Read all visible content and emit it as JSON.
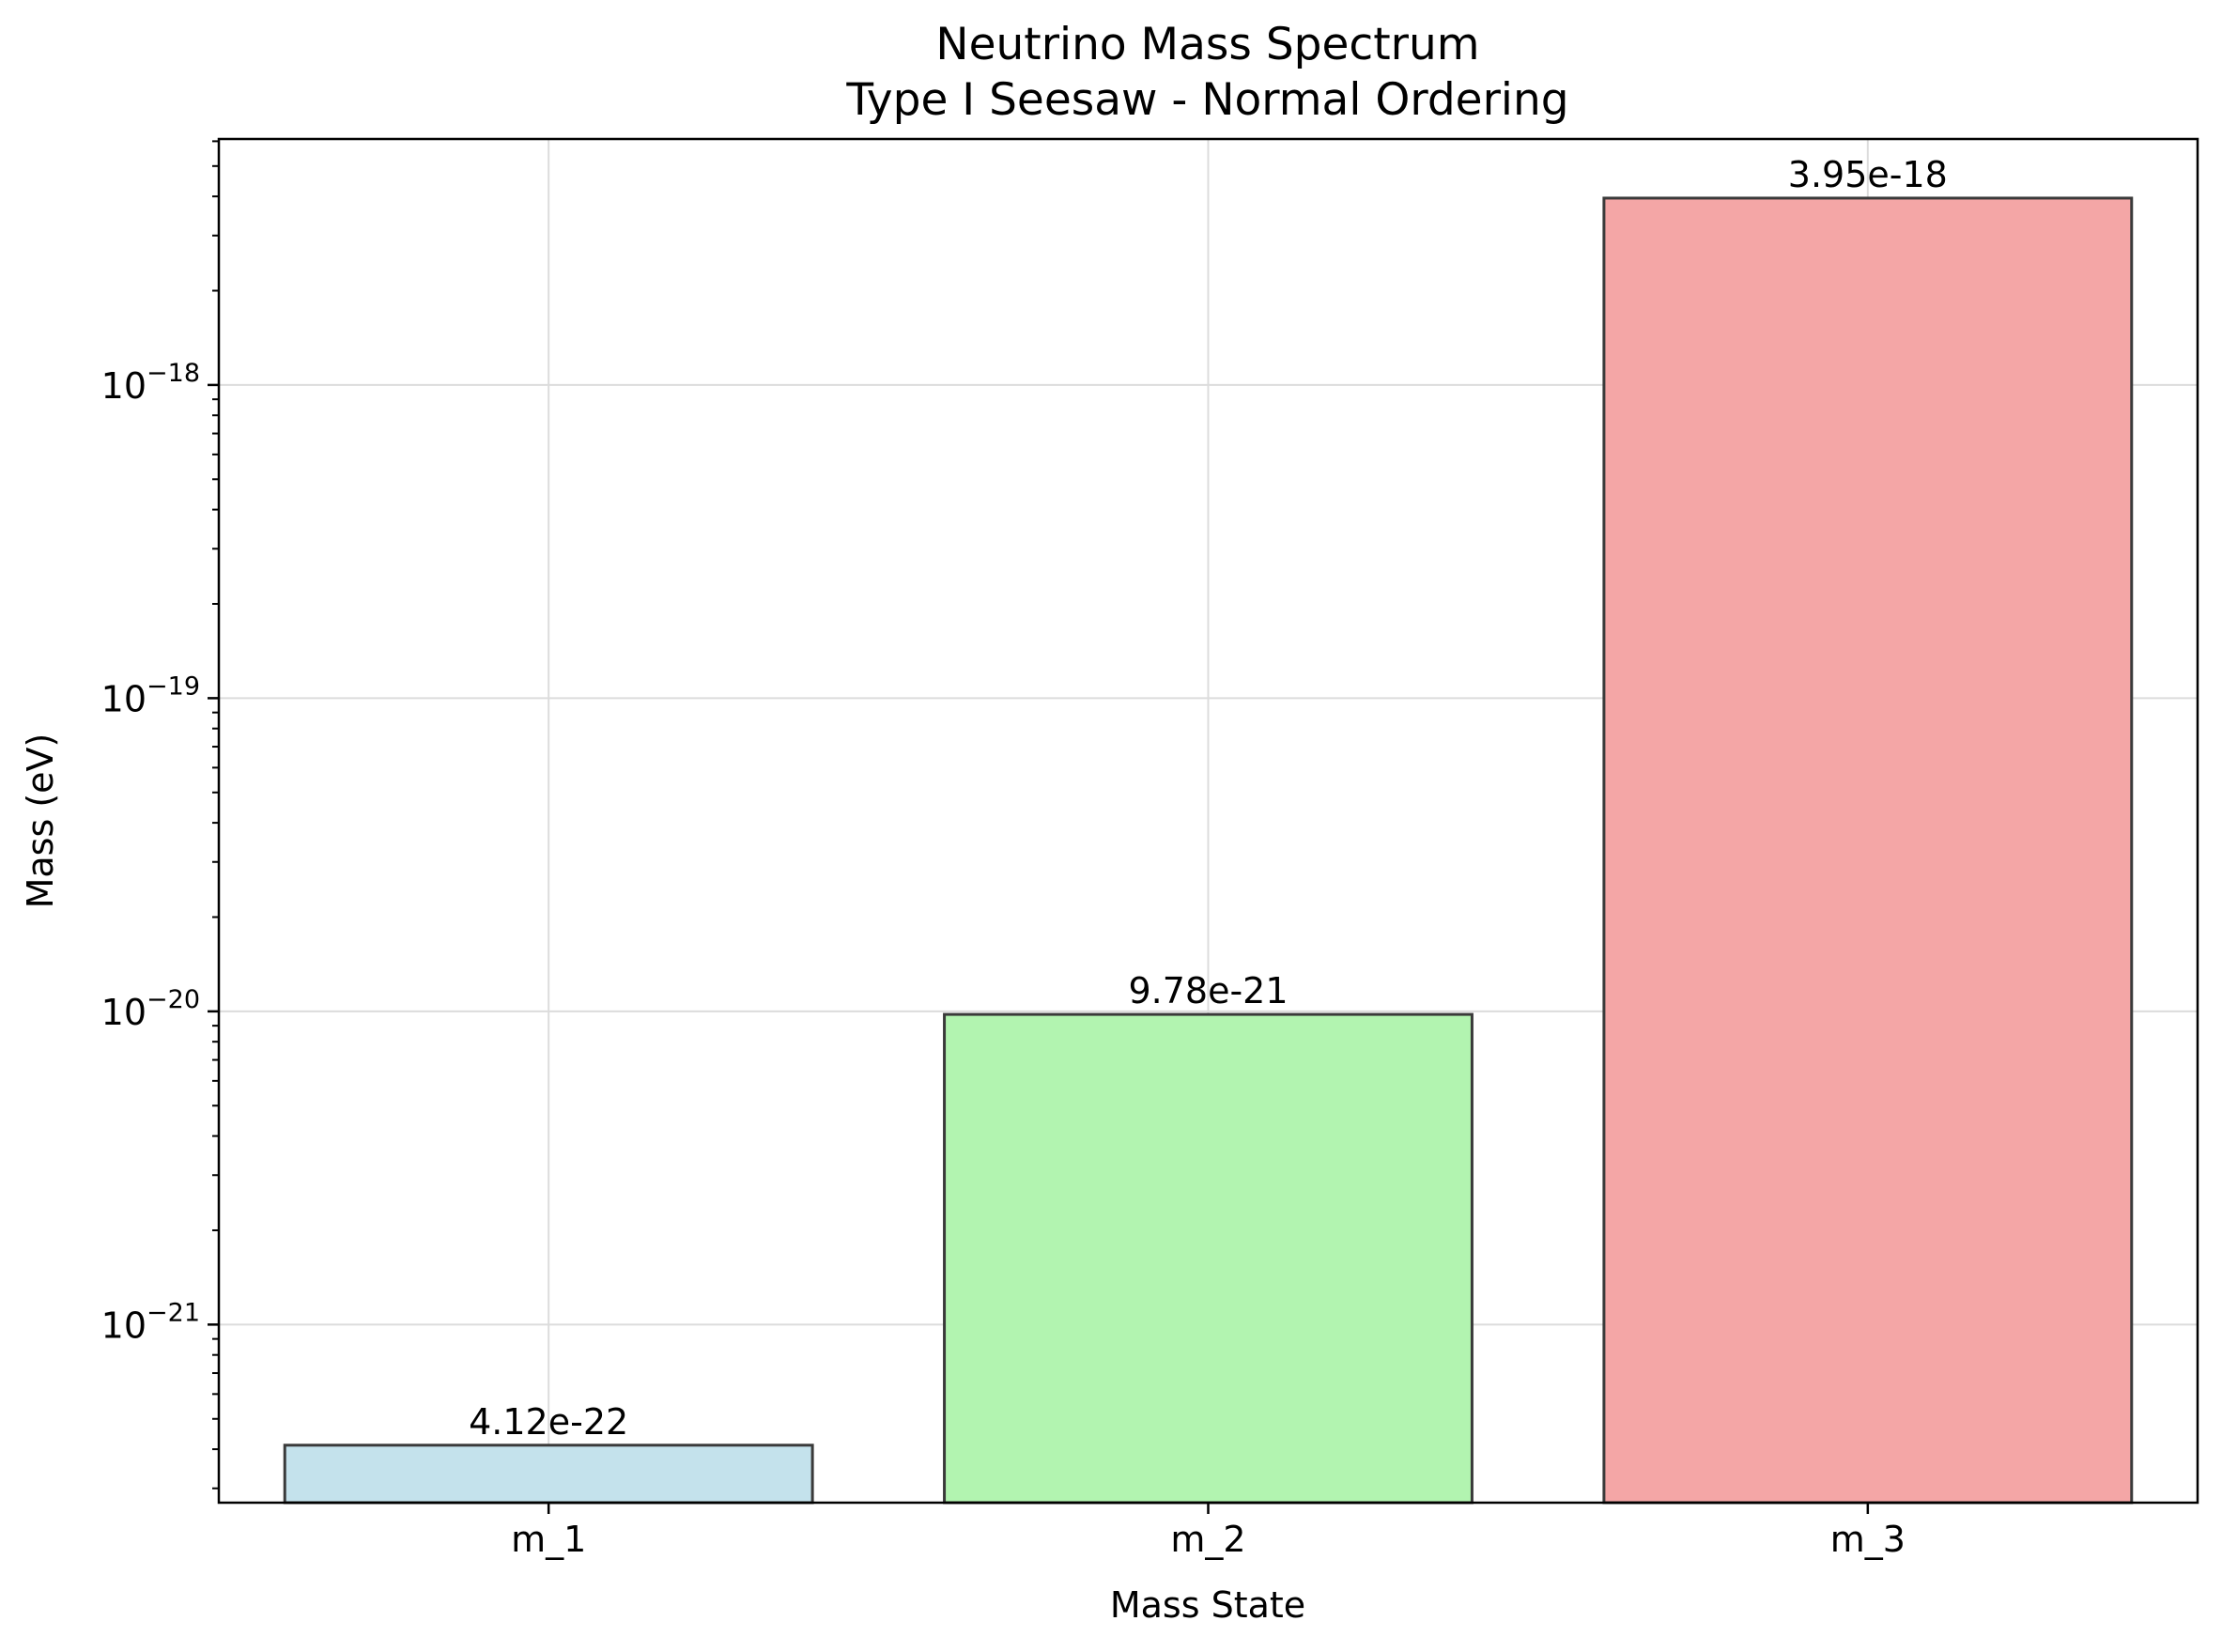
{
  "chart_data": {
    "type": "bar",
    "title": "Neutrino Mass Spectrum",
    "subtitle": "Type I Seesaw - Normal Ordering",
    "xlabel": "Mass State",
    "ylabel": "Mass (eV)",
    "yscale": "log",
    "ylim": [
      2.7e-22,
      6.1e-18
    ],
    "y_ticks": [
      {
        "value": 1e-21,
        "base": "10",
        "exp": "−21"
      },
      {
        "value": 1e-20,
        "base": "10",
        "exp": "−20"
      },
      {
        "value": 1e-19,
        "base": "10",
        "exp": "−19"
      },
      {
        "value": 1e-18,
        "base": "10",
        "exp": "−18"
      }
    ],
    "categories": [
      "m_1",
      "m_2",
      "m_3"
    ],
    "values": [
      4.12e-22,
      9.78e-21,
      3.95e-18
    ],
    "data_labels": [
      "4.12e-22",
      "9.78e-21",
      "3.95e-18"
    ],
    "colors": [
      "#c4e2ec",
      "#b2f4b0",
      "#f4a6a6"
    ],
    "edge_color": "#3a3a3a",
    "grid": true
  }
}
